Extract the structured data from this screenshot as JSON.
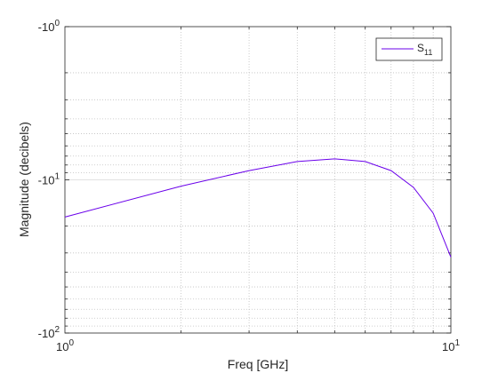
{
  "chart_data": {
    "type": "line",
    "title": "",
    "xlabel": "Freq [GHz]",
    "ylabel": "Magnitude (decibels)",
    "x_scale": "log",
    "y_scale": "log",
    "xlim": [
      1,
      10
    ],
    "ylim": [
      -1,
      -100
    ],
    "x_tick_labels": [
      {
        "base": "10",
        "exp": "0",
        "value": 1
      },
      {
        "base": "10",
        "exp": "1",
        "value": 10
      }
    ],
    "y_tick_labels": [
      {
        "base": "-10",
        "exp": "0",
        "value": -1
      },
      {
        "base": "-10",
        "exp": "1",
        "value": -10
      },
      {
        "base": "-10",
        "exp": "2",
        "value": -100
      }
    ],
    "grid": true,
    "minor_grid": true,
    "legend_position": "top-right",
    "line_color": "#6a00ea",
    "series": [
      {
        "name": "S11",
        "name_main": "S",
        "name_sub": "11",
        "x": [
          1.0,
          2.0,
          3.0,
          4.0,
          5.0,
          6.0,
          7.0,
          8.0,
          9.0,
          10.0
        ],
        "y": [
          -17.5,
          -11.0,
          -8.7,
          -7.6,
          -7.3,
          -7.6,
          -8.7,
          -11.2,
          -16.5,
          -32.0
        ]
      }
    ]
  }
}
